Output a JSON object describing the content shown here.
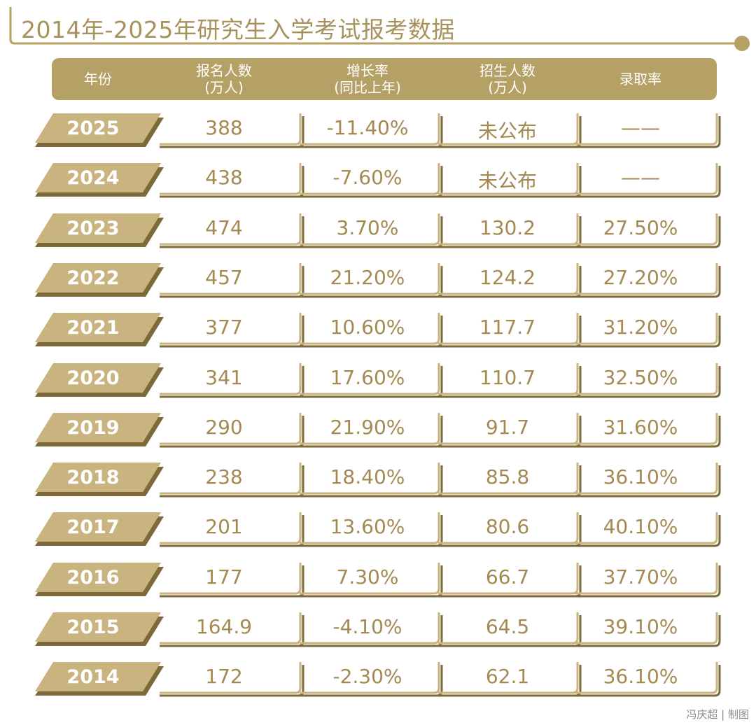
{
  "title": "2014年-2025年研究生入学考试报考数据",
  "credit": "冯庆超 | 制图",
  "colors": {
    "gold": "#b5a065",
    "gold_dark": "#8f7a45",
    "text_gold": "#a48a52",
    "tab_gold": "#c9b37e"
  },
  "chart_data": {
    "type": "table",
    "columns": [
      "年份",
      "报名人数\n(万人)",
      "增长率\n(同比上年)",
      "招生人数\n(万人)",
      "录取率"
    ],
    "rows": [
      [
        "2025",
        "388",
        "-11.40%",
        "未公布",
        "——"
      ],
      [
        "2024",
        "438",
        "-7.60%",
        "未公布",
        "——"
      ],
      [
        "2023",
        "474",
        "3.70%",
        "130.2",
        "27.50%"
      ],
      [
        "2022",
        "457",
        "21.20%",
        "124.2",
        "27.20%"
      ],
      [
        "2021",
        "377",
        "10.60%",
        "117.7",
        "31.20%"
      ],
      [
        "2020",
        "341",
        "17.60%",
        "110.7",
        "32.50%"
      ],
      [
        "2019",
        "290",
        "21.90%",
        "91.7",
        "31.60%"
      ],
      [
        "2018",
        "238",
        "18.40%",
        "85.8",
        "36.10%"
      ],
      [
        "2017",
        "201",
        "13.60%",
        "80.6",
        "40.10%"
      ],
      [
        "2016",
        "177",
        "7.30%",
        "66.7",
        "37.70%"
      ],
      [
        "2015",
        "164.9",
        "-4.10%",
        "64.5",
        "39.10%"
      ],
      [
        "2014",
        "172",
        "-2.30%",
        "62.1",
        "36.10%"
      ]
    ]
  }
}
